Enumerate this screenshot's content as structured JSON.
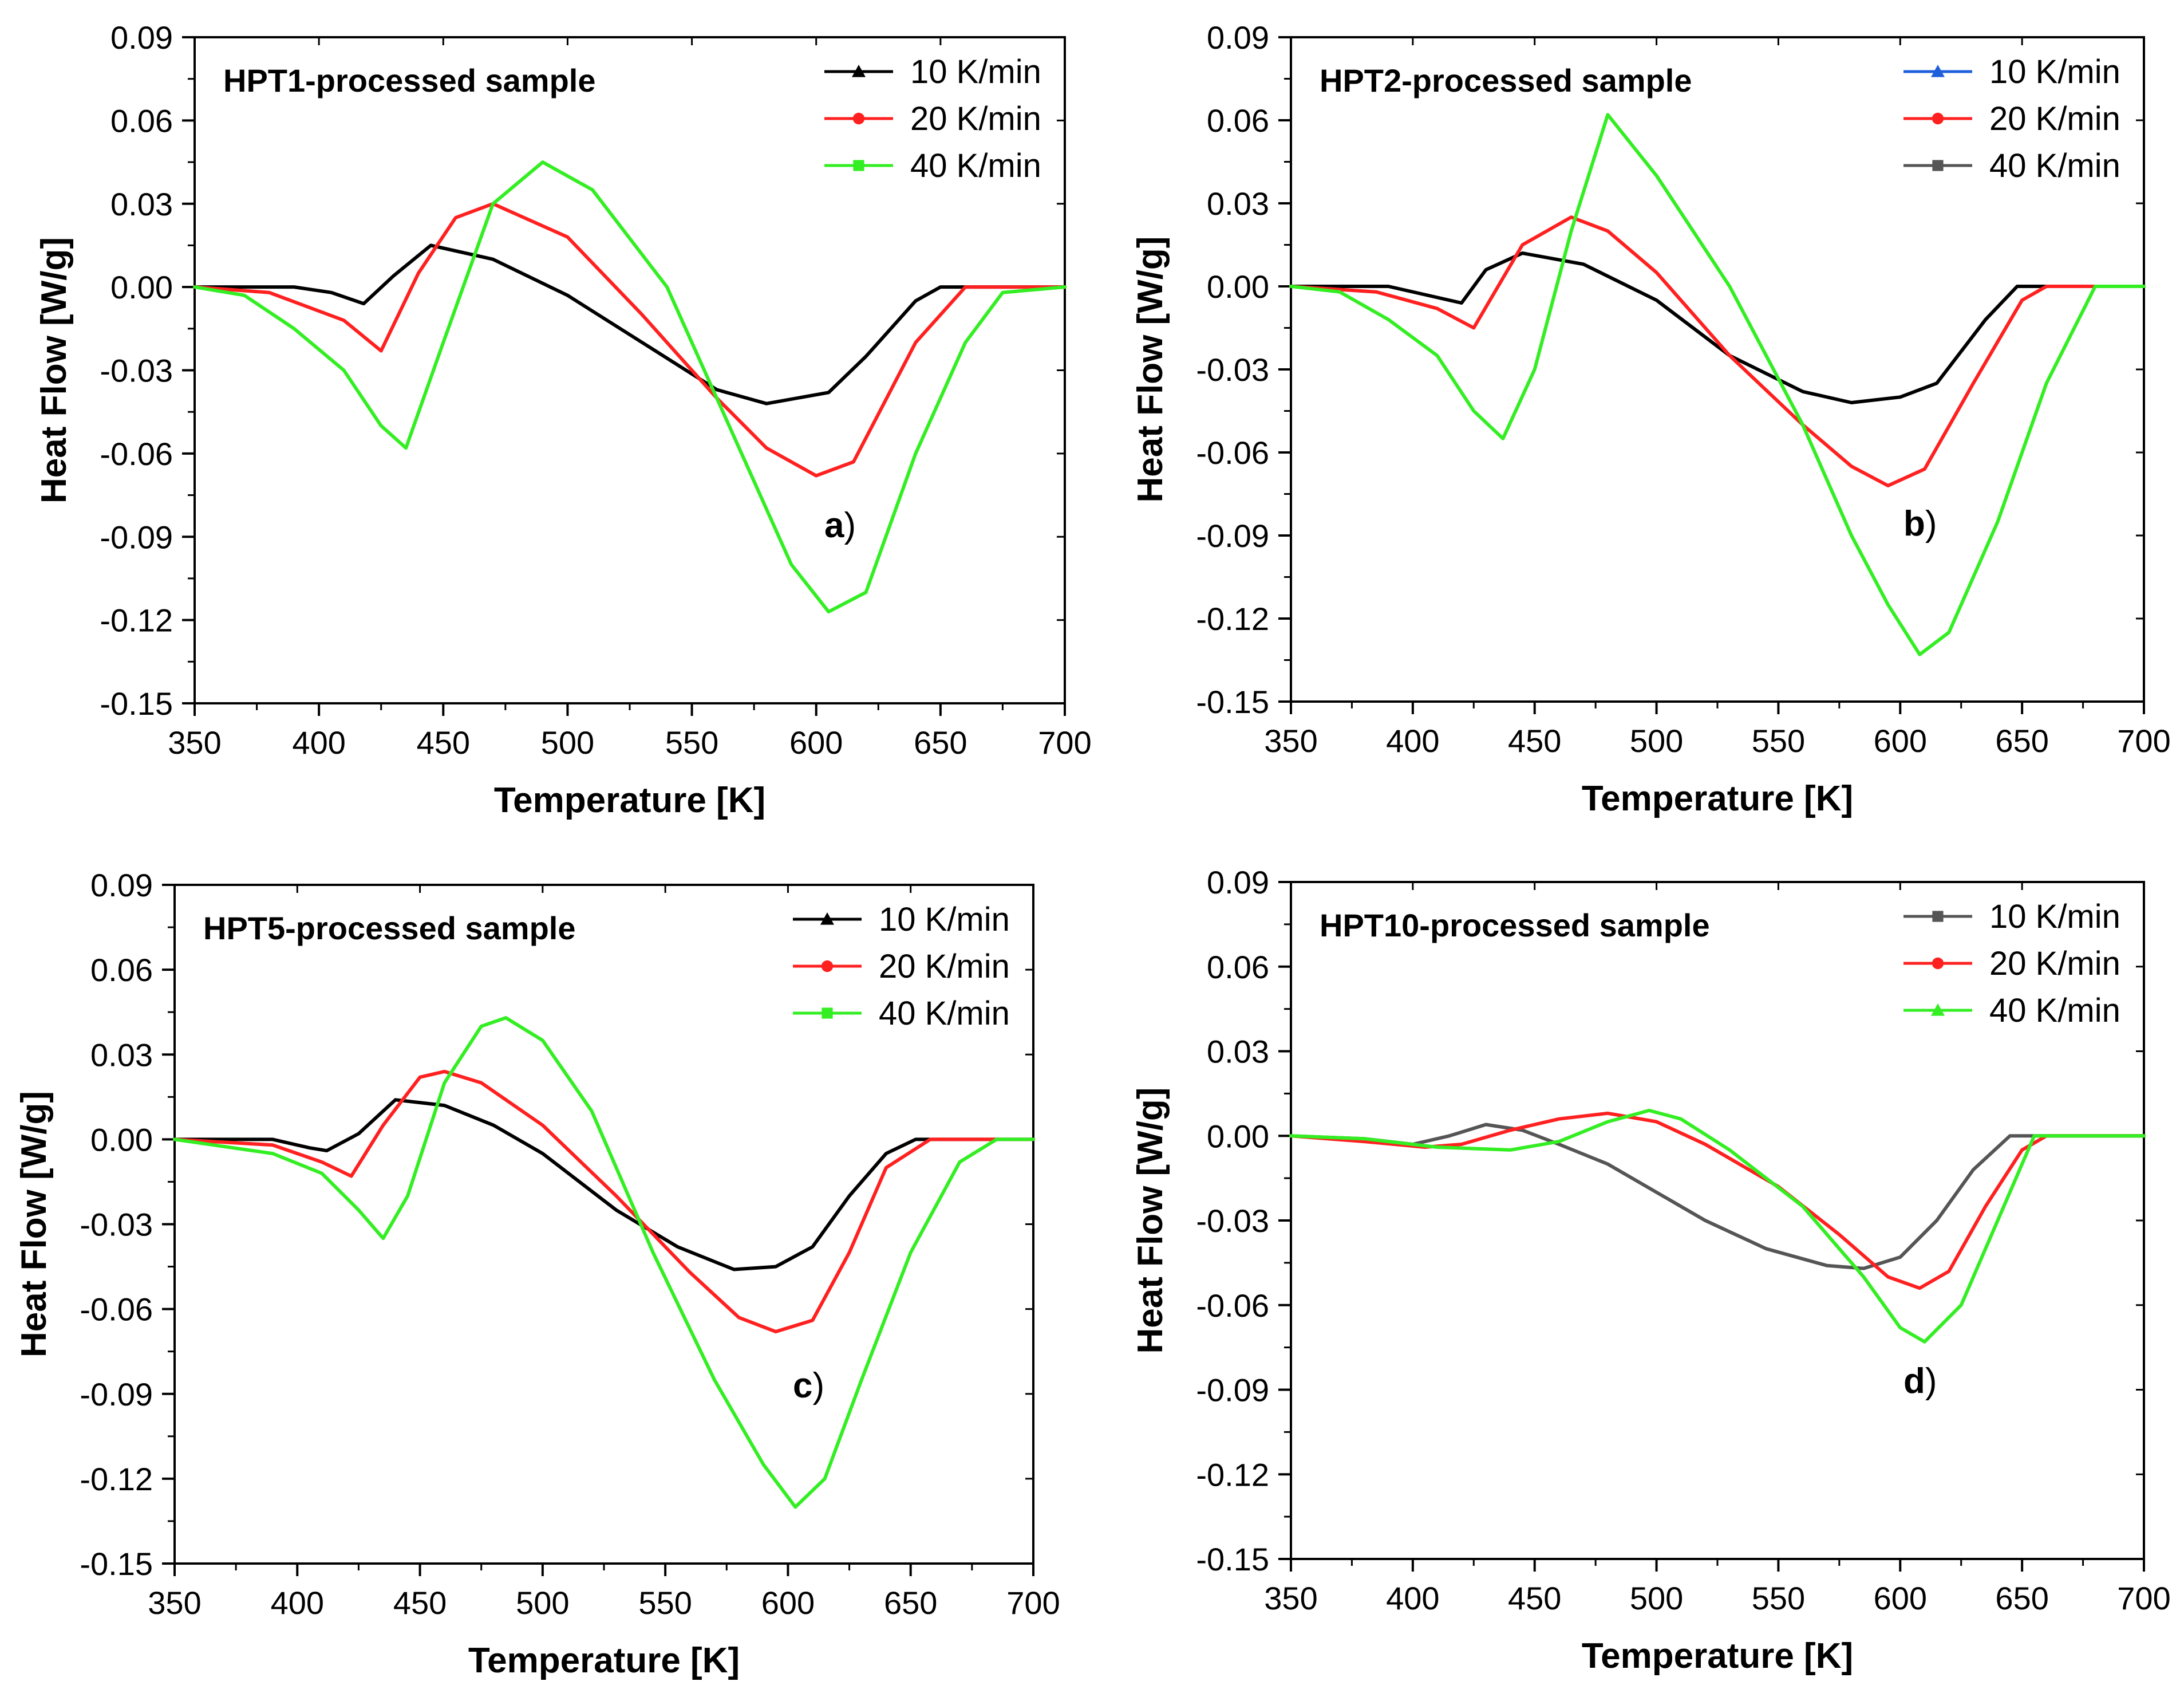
{
  "colors": {
    "black": "#000000",
    "red": "#ff2020",
    "green": "#33ee22",
    "blue": "#1f5fdc",
    "gray": "#555555"
  },
  "chart_data": [
    {
      "id": "a",
      "type": "line",
      "title": "HPT1-processed sample",
      "panel_label": "a",
      "xlabel": "Temperature [K]",
      "ylabel": "Heat Flow [W/g]",
      "xlim": [
        350,
        700
      ],
      "ylim": [
        -0.15,
        0.09
      ],
      "xticks": [
        "350",
        "400",
        "450",
        "500",
        "550",
        "600",
        "650",
        "700"
      ],
      "yticks": [
        "0.09",
        "0.06",
        "0.03",
        "0.00",
        "-0.03",
        "-0.06",
        "-0.09",
        "-0.12",
        "-0.15"
      ],
      "legend_position": "top-right",
      "series": [
        {
          "name": "10 K/min",
          "color": "black",
          "marker": "triangle",
          "x": [
            350,
            390,
            405,
            418,
            430,
            445,
            470,
            500,
            530,
            560,
            580,
            605,
            620,
            640,
            650,
            700
          ],
          "y": [
            0,
            0,
            -0.002,
            -0.006,
            0.004,
            0.015,
            0.01,
            -0.003,
            -0.02,
            -0.037,
            -0.042,
            -0.038,
            -0.025,
            -0.005,
            0,
            0
          ]
        },
        {
          "name": "20 K/min",
          "color": "red",
          "marker": "circle",
          "x": [
            350,
            380,
            410,
            425,
            440,
            455,
            470,
            500,
            530,
            560,
            580,
            600,
            615,
            640,
            660,
            700
          ],
          "y": [
            0,
            -0.002,
            -0.012,
            -0.023,
            0.005,
            0.025,
            0.03,
            0.018,
            -0.01,
            -0.04,
            -0.058,
            -0.068,
            -0.063,
            -0.02,
            0,
            0
          ]
        },
        {
          "name": "40 K/min",
          "color": "green",
          "marker": "square",
          "x": [
            350,
            370,
            390,
            410,
            425,
            435,
            450,
            470,
            490,
            510,
            540,
            570,
            590,
            605,
            620,
            640,
            660,
            675,
            700
          ],
          "y": [
            0,
            -0.003,
            -0.015,
            -0.03,
            -0.05,
            -0.058,
            -0.02,
            0.03,
            0.045,
            0.035,
            0,
            -0.06,
            -0.1,
            -0.117,
            -0.11,
            -0.06,
            -0.02,
            -0.002,
            0
          ]
        }
      ]
    },
    {
      "id": "b",
      "type": "line",
      "title": "HPT2-processed sample",
      "panel_label": "b",
      "xlabel": "Temperature [K]",
      "ylabel": "Heat Flow [W/g]",
      "xlim": [
        350,
        700
      ],
      "ylim": [
        -0.15,
        0.09
      ],
      "xticks": [
        "350",
        "400",
        "450",
        "500",
        "550",
        "600",
        "650",
        "700"
      ],
      "yticks": [
        "0.09",
        "0.06",
        "0.03",
        "0.00",
        "-0.03",
        "-0.06",
        "-0.09",
        "-0.12",
        "-0.15"
      ],
      "legend_position": "top-right",
      "series": [
        {
          "name": "10 K/min",
          "color": "blue",
          "plot_color": "black",
          "marker": "triangle",
          "x": [
            350,
            390,
            405,
            420,
            430,
            445,
            470,
            500,
            530,
            560,
            580,
            600,
            615,
            635,
            648,
            700
          ],
          "y": [
            0,
            0,
            -0.003,
            -0.006,
            0.006,
            0.012,
            0.008,
            -0.005,
            -0.025,
            -0.038,
            -0.042,
            -0.04,
            -0.035,
            -0.012,
            0,
            0
          ]
        },
        {
          "name": "20 K/min",
          "color": "red",
          "marker": "circle",
          "x": [
            350,
            385,
            410,
            425,
            445,
            465,
            480,
            500,
            530,
            560,
            580,
            595,
            610,
            630,
            650,
            660,
            700
          ],
          "y": [
            0,
            -0.002,
            -0.008,
            -0.015,
            0.015,
            0.025,
            0.02,
            0.005,
            -0.025,
            -0.05,
            -0.065,
            -0.072,
            -0.066,
            -0.035,
            -0.005,
            0,
            0
          ]
        },
        {
          "name": "40 K/min",
          "color": "gray",
          "plot_color": "green",
          "marker": "square",
          "x": [
            350,
            370,
            390,
            410,
            425,
            437,
            450,
            465,
            480,
            500,
            530,
            560,
            580,
            595,
            608,
            620,
            640,
            660,
            680,
            700
          ],
          "y": [
            0,
            -0.002,
            -0.012,
            -0.025,
            -0.045,
            -0.055,
            -0.03,
            0.02,
            0.062,
            0.04,
            0,
            -0.05,
            -0.09,
            -0.115,
            -0.133,
            -0.125,
            -0.085,
            -0.035,
            0,
            0
          ]
        }
      ]
    },
    {
      "id": "c",
      "type": "line",
      "title": "HPT5-processed sample",
      "panel_label": "c",
      "xlabel": "Temperature [K]",
      "ylabel": "Heat Flow [W/g]",
      "xlim": [
        350,
        700
      ],
      "ylim": [
        -0.15,
        0.09
      ],
      "xticks": [
        "350",
        "400",
        "450",
        "500",
        "550",
        "600",
        "650",
        "700"
      ],
      "yticks": [
        "0.09",
        "0.06",
        "0.03",
        "0.00",
        "-0.03",
        "-0.06",
        "-0.09",
        "-0.12",
        "-0.15"
      ],
      "legend_position": "top-right",
      "series": [
        {
          "name": "10 K/min",
          "color": "black",
          "marker": "triangle",
          "x": [
            350,
            390,
            405,
            412,
            425,
            440,
            460,
            480,
            500,
            530,
            555,
            578,
            595,
            610,
            625,
            640,
            652,
            700
          ],
          "y": [
            0,
            0,
            -0.003,
            -0.004,
            0.002,
            0.014,
            0.012,
            0.005,
            -0.005,
            -0.025,
            -0.038,
            -0.046,
            -0.045,
            -0.038,
            -0.02,
            -0.005,
            0,
            0
          ]
        },
        {
          "name": "20 K/min",
          "color": "red",
          "marker": "circle",
          "x": [
            350,
            390,
            410,
            422,
            435,
            450,
            460,
            475,
            500,
            530,
            560,
            580,
            595,
            610,
            625,
            640,
            658,
            700
          ],
          "y": [
            0,
            -0.002,
            -0.008,
            -0.013,
            0.005,
            0.022,
            0.024,
            0.02,
            0.005,
            -0.02,
            -0.047,
            -0.063,
            -0.068,
            -0.064,
            -0.04,
            -0.01,
            0,
            0
          ]
        },
        {
          "name": "40 K/min",
          "color": "green",
          "marker": "square",
          "x": [
            350,
            390,
            410,
            425,
            435,
            445,
            460,
            475,
            485,
            500,
            520,
            545,
            570,
            590,
            603,
            615,
            630,
            650,
            670,
            685,
            700
          ],
          "y": [
            0,
            -0.005,
            -0.012,
            -0.025,
            -0.035,
            -0.02,
            0.02,
            0.04,
            0.043,
            0.035,
            0.01,
            -0.04,
            -0.085,
            -0.115,
            -0.13,
            -0.12,
            -0.085,
            -0.04,
            -0.008,
            0,
            0
          ]
        }
      ]
    },
    {
      "id": "d",
      "type": "line",
      "title": "HPT10-processed sample",
      "panel_label": "d",
      "xlabel": "Temperature [K]",
      "ylabel": "Heat Flow [W/g]",
      "xlim": [
        350,
        700
      ],
      "ylim": [
        -0.15,
        0.09
      ],
      "xticks": [
        "350",
        "400",
        "450",
        "500",
        "550",
        "600",
        "650",
        "700"
      ],
      "yticks": [
        "0.09",
        "0.06",
        "0.03",
        "0.00",
        "-0.03",
        "-0.06",
        "-0.09",
        "-0.12",
        "-0.15"
      ],
      "legend_position": "top-right",
      "series": [
        {
          "name": "10 K/min",
          "color": "gray",
          "marker": "square",
          "x": [
            350,
            380,
            400,
            415,
            430,
            445,
            460,
            480,
            500,
            520,
            545,
            570,
            585,
            600,
            615,
            630,
            645,
            655,
            700
          ],
          "y": [
            0,
            -0.001,
            -0.003,
            0,
            0.004,
            0.002,
            -0.003,
            -0.01,
            -0.02,
            -0.03,
            -0.04,
            -0.046,
            -0.047,
            -0.043,
            -0.03,
            -0.012,
            0,
            0,
            0
          ]
        },
        {
          "name": "20 K/min",
          "color": "red",
          "marker": "circle",
          "x": [
            350,
            380,
            405,
            420,
            440,
            460,
            480,
            500,
            520,
            550,
            575,
            595,
            608,
            620,
            635,
            650,
            660,
            700
          ],
          "y": [
            0,
            -0.002,
            -0.004,
            -0.003,
            0.002,
            0.006,
            0.008,
            0.005,
            -0.003,
            -0.018,
            -0.035,
            -0.05,
            -0.054,
            -0.048,
            -0.025,
            -0.005,
            0,
            0
          ]
        },
        {
          "name": "40 K/min",
          "color": "green",
          "marker": "triangle",
          "x": [
            350,
            380,
            410,
            440,
            460,
            480,
            497,
            510,
            530,
            560,
            585,
            600,
            610,
            625,
            640,
            655,
            700
          ],
          "y": [
            0,
            -0.001,
            -0.004,
            -0.005,
            -0.002,
            0.005,
            0.009,
            0.006,
            -0.005,
            -0.025,
            -0.05,
            -0.068,
            -0.073,
            -0.06,
            -0.03,
            0,
            0
          ]
        }
      ]
    }
  ]
}
